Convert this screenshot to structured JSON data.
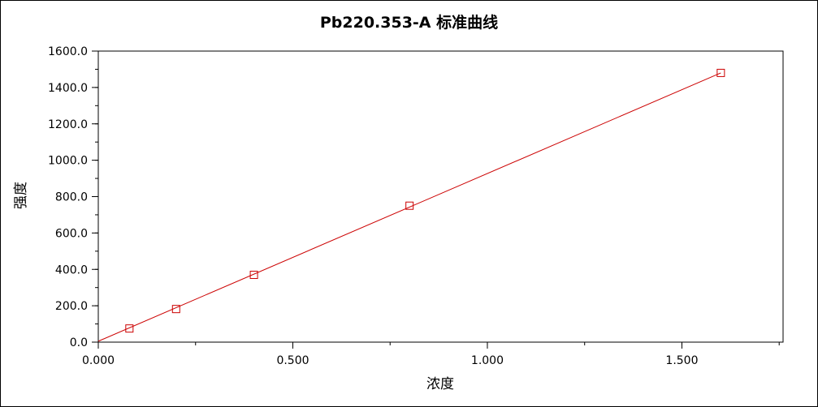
{
  "chart_data": {
    "type": "scatter",
    "title": "Pb220.353-A  标准曲线",
    "xlabel": "浓度",
    "ylabel": "强度",
    "xlim": [
      0,
      1.76
    ],
    "ylim": [
      0,
      1600
    ],
    "x_ticks": [
      {
        "value": 0,
        "label": "0.000"
      },
      {
        "value": 0.5,
        "label": "0.500"
      },
      {
        "value": 1.0,
        "label": "1.000"
      },
      {
        "value": 1.5,
        "label": "1.500"
      }
    ],
    "x_minor_step": 0.25,
    "y_ticks": [
      {
        "value": 0,
        "label": "0.0"
      },
      {
        "value": 200,
        "label": "200.0"
      },
      {
        "value": 400,
        "label": "400.0"
      },
      {
        "value": 600,
        "label": "600.0"
      },
      {
        "value": 800,
        "label": "800.0"
      },
      {
        "value": 1000,
        "label": "1000.0"
      },
      {
        "value": 1200,
        "label": "1200.0"
      },
      {
        "value": 1400,
        "label": "1400.0"
      },
      {
        "value": 1600,
        "label": "1600.0"
      }
    ],
    "y_minor_step": 100,
    "grid": false,
    "legend": "none",
    "series": [
      {
        "marker": "square",
        "color": "#cc0000",
        "points": [
          {
            "x": 0.08,
            "y": 75
          },
          {
            "x": 0.2,
            "y": 182
          },
          {
            "x": 0.4,
            "y": 370
          },
          {
            "x": 0.8,
            "y": 750
          },
          {
            "x": 1.6,
            "y": 1480
          }
        ]
      }
    ],
    "fit_line": {
      "color": "#cc0000",
      "from": {
        "x": 0,
        "y": 5
      },
      "to": {
        "x": 1.6,
        "y": 1480
      }
    }
  }
}
